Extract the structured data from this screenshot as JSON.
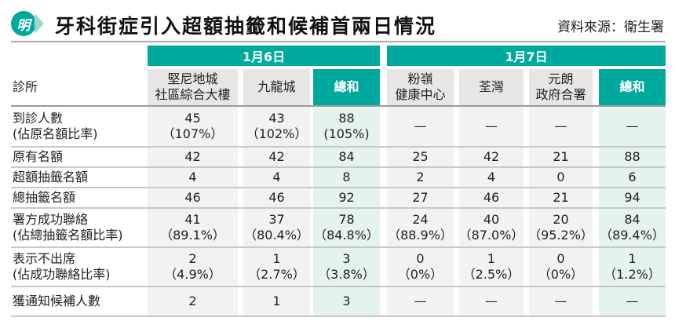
{
  "logo": "明",
  "title": "牙科街症引入超額抽籤和候補首兩日情況",
  "source": "資料來源：衛生署",
  "dates": [
    "1月6日",
    "1月7日"
  ],
  "header": {
    "label": "診所",
    "cols": [
      [
        "堅尼地城",
        "社區綜合大樓"
      ],
      [
        "九龍城",
        ""
      ],
      [
        "總和",
        ""
      ],
      [
        "粉嶺",
        "健康中心"
      ],
      [
        "荃灣",
        ""
      ],
      [
        "元朗",
        "政府合署"
      ],
      [
        "總和",
        ""
      ]
    ]
  },
  "rows": [
    {
      "label": [
        "到診人數",
        "(佔原名額比率)"
      ],
      "cells": [
        [
          "45",
          "（107%）"
        ],
        [
          "43",
          "（102%）"
        ],
        [
          "88",
          "(105%)"
        ],
        [
          "—",
          ""
        ],
        [
          "—",
          ""
        ],
        [
          "—",
          ""
        ],
        [
          "—",
          ""
        ]
      ]
    },
    {
      "label": [
        "原有名額",
        ""
      ],
      "cells": [
        [
          "42",
          ""
        ],
        [
          "42",
          ""
        ],
        [
          "84",
          ""
        ],
        [
          "25",
          ""
        ],
        [
          "42",
          ""
        ],
        [
          "21",
          ""
        ],
        [
          "88",
          ""
        ]
      ]
    },
    {
      "label": [
        "超額抽籤名額",
        ""
      ],
      "cells": [
        [
          "4",
          ""
        ],
        [
          "4",
          ""
        ],
        [
          "8",
          ""
        ],
        [
          "2",
          ""
        ],
        [
          "4",
          ""
        ],
        [
          "0",
          ""
        ],
        [
          "6",
          ""
        ]
      ]
    },
    {
      "label": [
        "總抽籤名額",
        ""
      ],
      "cells": [
        [
          "46",
          ""
        ],
        [
          "46",
          ""
        ],
        [
          "92",
          ""
        ],
        [
          "27",
          ""
        ],
        [
          "46",
          ""
        ],
        [
          "21",
          ""
        ],
        [
          "94",
          ""
        ]
      ]
    },
    {
      "label": [
        "署方成功聯絡",
        "(佔總抽籤名額比率)"
      ],
      "cells": [
        [
          "41",
          "（89.1%）"
        ],
        [
          "37",
          "（80.4%）"
        ],
        [
          "78",
          "（84.8%）"
        ],
        [
          "24",
          "（88.9%）"
        ],
        [
          "40",
          "（87.0%）"
        ],
        [
          "20",
          "（95.2%）"
        ],
        [
          "84",
          "（89.4%）"
        ]
      ]
    },
    {
      "label": [
        "表示不出席",
        "(佔成功聯絡比率)"
      ],
      "cells": [
        [
          "2",
          "（4.9%）"
        ],
        [
          "1",
          "（2.7%）"
        ],
        [
          "3",
          "（3.8%）"
        ],
        [
          "0",
          "（0%）"
        ],
        [
          "1",
          "（2.5%）"
        ],
        [
          "0",
          "（0%）"
        ],
        [
          "1",
          "（1.2%）"
        ]
      ]
    },
    {
      "label": [
        "獲通知候補人數",
        ""
      ],
      "cells": [
        [
          "2",
          ""
        ],
        [
          "1",
          ""
        ],
        [
          "3",
          ""
        ],
        [
          "—",
          ""
        ],
        [
          "—",
          ""
        ],
        [
          "—",
          ""
        ],
        [
          "—",
          ""
        ]
      ]
    }
  ]
}
